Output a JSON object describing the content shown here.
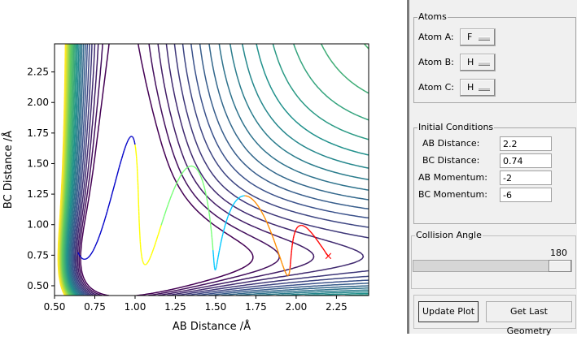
{
  "plot": {
    "xlabel": "AB Distance /Å",
    "ylabel": "BC Distance /Å",
    "xticks": [
      "0.50",
      "0.75",
      "1.00",
      "1.25",
      "1.50",
      "1.75",
      "2.00",
      "2.25"
    ],
    "yticks": [
      "0.50",
      "0.75",
      "1.00",
      "1.25",
      "1.50",
      "1.75",
      "2.00",
      "2.25"
    ],
    "marker": "×"
  },
  "chart_data": {
    "type": "contour",
    "xlabel": "AB Distance /Å",
    "ylabel": "BC Distance /Å",
    "xlim": [
      0.5,
      2.45
    ],
    "ylim": [
      0.42,
      2.48
    ],
    "colormap": "viridis",
    "grid": false,
    "final_position_marker": {
      "x": 2.2,
      "y": 0.74,
      "color": "#ff0000"
    }
  },
  "panel": {
    "atoms": {
      "title": "Atoms",
      "rows": [
        {
          "label": "Atom A:",
          "value": "F"
        },
        {
          "label": "Atom B:",
          "value": "H"
        },
        {
          "label": "Atom C:",
          "value": "H"
        }
      ]
    },
    "initial": {
      "title": "Initial Conditions",
      "rows": [
        {
          "label": "AB Distance:",
          "value": "2.2"
        },
        {
          "label": "BC Distance:",
          "value": "0.74"
        },
        {
          "label": "AB Momentum:",
          "value": "-2"
        },
        {
          "label": "BC Momentum:",
          "value": "-6"
        }
      ]
    },
    "collision": {
      "title": "Collision Angle",
      "value": "180",
      "fraction": 1.0
    },
    "buttons": {
      "update": "Update Plot",
      "last": "Get Last Geometry"
    }
  }
}
